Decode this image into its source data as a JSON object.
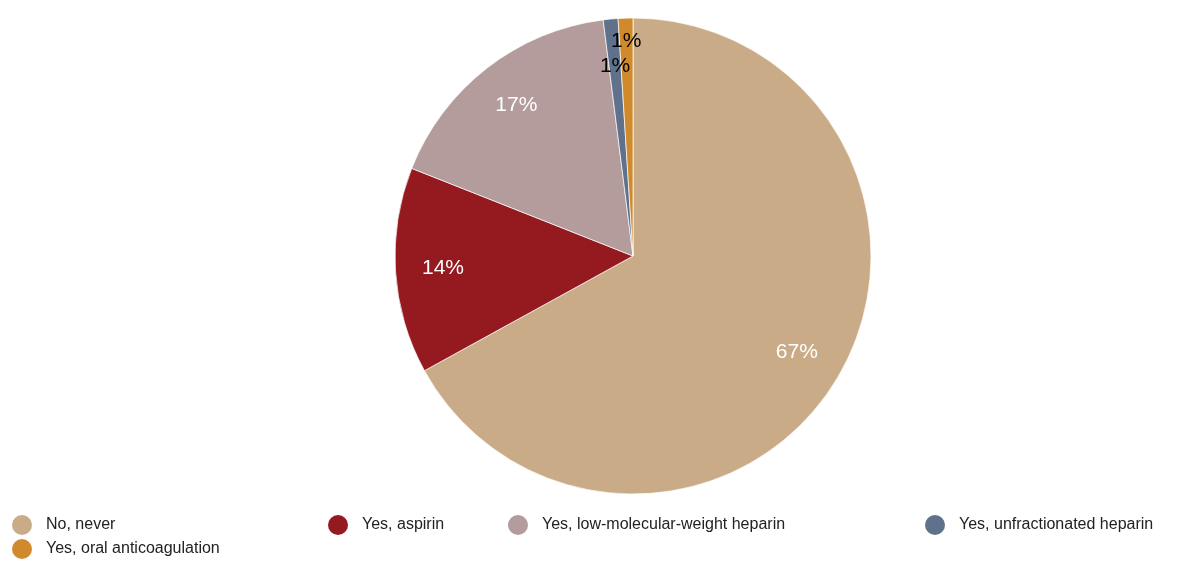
{
  "chart_data": {
    "type": "pie",
    "categories": [
      "No, never",
      "Yes, aspirin",
      "Yes, low-molecular-weight heparin",
      "Yes, unfractionated heparin",
      "Yes, oral anticoagulation"
    ],
    "values": [
      67,
      14,
      17,
      1,
      1
    ],
    "colors": [
      "#c9ac87",
      "#951a1f",
      "#b39c9b",
      "#5f718b",
      "#d08a2c"
    ],
    "value_labels": [
      "67%",
      "14%",
      "17%",
      "1%",
      "1%"
    ],
    "legend": "bottom"
  }
}
